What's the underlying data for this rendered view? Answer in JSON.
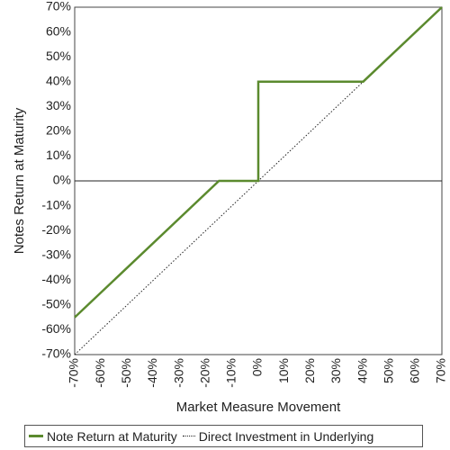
{
  "chart_data": {
    "type": "line",
    "title": "",
    "xlabel": "Market Measure Movement",
    "ylabel": "Notes Return at Maturity",
    "xlim": [
      -70,
      70
    ],
    "ylim": [
      -70,
      70
    ],
    "x_ticks": [
      "-70%",
      "-60%",
      "-50%",
      "-40%",
      "-30%",
      "-20%",
      "-10%",
      "0%",
      "10%",
      "20%",
      "30%",
      "40%",
      "50%",
      "60%",
      "70%"
    ],
    "y_ticks": [
      "70%",
      "60%",
      "50%",
      "40%",
      "30%",
      "20%",
      "10%",
      "0%",
      "-10%",
      "-20%",
      "-30%",
      "-40%",
      "-50%",
      "-60%",
      "-70%"
    ],
    "grid": false,
    "legend_position": "bottom",
    "series": [
      {
        "name": "Note Return at Maturity",
        "color": "#5b8a2e",
        "style": "solid",
        "points": [
          [
            -70,
            -55
          ],
          [
            -15,
            0
          ],
          [
            0,
            0
          ],
          [
            0,
            40
          ],
          [
            40,
            40
          ],
          [
            70,
            70
          ]
        ]
      },
      {
        "name": "Direct Investment in Underlying",
        "color": "#222222",
        "style": "dotted",
        "points": [
          [
            -70,
            -70
          ],
          [
            70,
            70
          ]
        ]
      }
    ]
  }
}
